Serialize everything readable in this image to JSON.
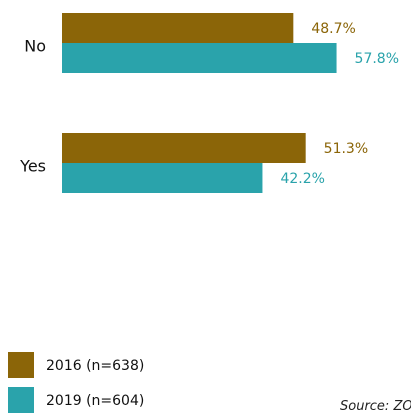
{
  "chart_data": {
    "type": "bar",
    "orientation": "horizontal",
    "categories": [
      "No",
      "Yes"
    ],
    "series": [
      {
        "name": "2016 (n=638)",
        "color": "#8B6508",
        "values": [
          48.7,
          51.3
        ],
        "labels": [
          "48.7%",
          "51.3%"
        ]
      },
      {
        "name": "2019 (n=604)",
        "color": "#2AA3AB",
        "values": [
          57.8,
          42.2
        ],
        "labels": [
          "57.8%",
          "42.2%"
        ]
      }
    ],
    "xlim": [
      0,
      70
    ],
    "grid": false,
    "legend_position": "bottom-left"
  },
  "source_note": "Source: ZO"
}
